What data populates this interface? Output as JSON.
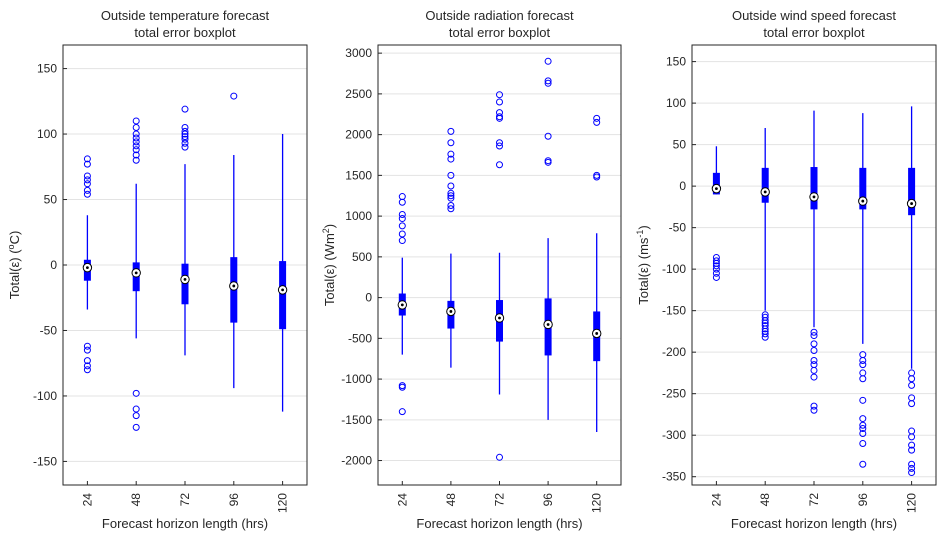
{
  "chart_data": [
    {
      "type": "boxplot",
      "title": [
        "Outside temperature forecast",
        "total error boxplot"
      ],
      "xlabel": "Forecast horizon length (hrs)",
      "ylabel": "Total(ε) (°C)",
      "ylabel_parts": [
        "Total(ε) (",
        "o",
        "C)"
      ],
      "ylim": [
        -168,
        168
      ],
      "yticks": [
        -150,
        -100,
        -50,
        0,
        50,
        100,
        150
      ],
      "grid": true,
      "color": "#0000ff",
      "categories": [
        "24",
        "48",
        "72",
        "96",
        "120"
      ],
      "boxes": [
        {
          "x": "24",
          "whisker_low": -34,
          "q1": -12,
          "median": -2,
          "q3": 4,
          "whisker_high": 38,
          "outliers": [
            81,
            77,
            68,
            65,
            62,
            57,
            54,
            -62,
            -65,
            -73,
            -77,
            -80
          ]
        },
        {
          "x": "48",
          "whisker_low": -56,
          "q1": -20,
          "median": -6,
          "q3": 2,
          "whisker_high": 62,
          "outliers": [
            110,
            105,
            100,
            97,
            94,
            91,
            88,
            84,
            80,
            -98,
            -110,
            -115,
            -124
          ]
        },
        {
          "x": "72",
          "whisker_low": -69,
          "q1": -30,
          "median": -11,
          "q3": 1,
          "whisker_high": 77,
          "outliers": [
            119,
            105,
            102,
            100,
            98,
            96,
            93,
            90
          ]
        },
        {
          "x": "96",
          "whisker_low": -94,
          "q1": -44,
          "median": -16,
          "q3": 6,
          "whisker_high": 84,
          "outliers": [
            129
          ]
        },
        {
          "x": "120",
          "whisker_low": -112,
          "q1": -49,
          "median": -19,
          "q3": 3,
          "whisker_high": 100,
          "outliers": []
        }
      ]
    },
    {
      "type": "boxplot",
      "title": [
        "Outside radiation forecast",
        "total error boxplot"
      ],
      "xlabel": "Forecast horizon length (hrs)",
      "ylabel": "Total(ε) (Wm²)",
      "ylabel_parts": [
        "Total(ε) (Wm",
        "2",
        ")"
      ],
      "ylim": [
        -2300,
        3100
      ],
      "yticks": [
        -2000,
        -1500,
        -1000,
        -500,
        0,
        500,
        1000,
        1500,
        2000,
        2500,
        3000
      ],
      "grid": true,
      "color": "#0000ff",
      "categories": [
        "24",
        "48",
        "72",
        "96",
        "120"
      ],
      "boxes": [
        {
          "x": "24",
          "whisker_low": -700,
          "q1": -220,
          "median": -90,
          "q3": 50,
          "whisker_high": 490,
          "outliers": [
            1240,
            1170,
            1020,
            970,
            880,
            780,
            700,
            -1080,
            -1100,
            -1400
          ]
        },
        {
          "x": "48",
          "whisker_low": -860,
          "q1": -380,
          "median": -170,
          "q3": -40,
          "whisker_high": 540,
          "outliers": [
            2040,
            1900,
            1760,
            1700,
            1500,
            1370,
            1280,
            1250,
            1220,
            1130,
            1090
          ]
        },
        {
          "x": "72",
          "whisker_low": -1190,
          "q1": -540,
          "median": -250,
          "q3": -30,
          "whisker_high": 550,
          "outliers": [
            2490,
            2400,
            2270,
            2220,
            2200,
            1900,
            1860,
            1630,
            -1960
          ]
        },
        {
          "x": "96",
          "whisker_low": -1500,
          "q1": -710,
          "median": -330,
          "q3": -10,
          "whisker_high": 730,
          "outliers": [
            2900,
            2660,
            2630,
            1980,
            1680,
            1660
          ]
        },
        {
          "x": "120",
          "whisker_low": -1650,
          "q1": -780,
          "median": -440,
          "q3": -170,
          "whisker_high": 790,
          "outliers": [
            2200,
            2150,
            1500,
            1480
          ]
        }
      ]
    },
    {
      "type": "boxplot",
      "title": [
        "Outside wind speed forecast",
        "total error boxplot"
      ],
      "xlabel": "Forecast horizon length (hrs)",
      "ylabel": "Total(ε) (ms⁻¹)",
      "ylabel_parts": [
        "Total(ε) (ms",
        "-1",
        ")"
      ],
      "ylim": [
        -360,
        170
      ],
      "yticks": [
        -350,
        -300,
        -250,
        -200,
        -150,
        -100,
        -50,
        0,
        50,
        100,
        150
      ],
      "grid": true,
      "color": "#0000ff",
      "categories": [
        "24",
        "48",
        "72",
        "96",
        "120"
      ],
      "boxes": [
        {
          "x": "24",
          "whisker_low": -10,
          "q1": -10,
          "median": -3,
          "q3": 16,
          "whisker_high": 48,
          "outliers": [
            -86,
            -90,
            -93,
            -96,
            -100,
            -105,
            -110
          ]
        },
        {
          "x": "48",
          "whisker_low": -150,
          "q1": -20,
          "median": -7,
          "q3": 22,
          "whisker_high": 70,
          "outliers": [
            -155,
            -158,
            -162,
            -165,
            -168,
            -172,
            -175,
            -178,
            -182
          ]
        },
        {
          "x": "72",
          "whisker_low": -170,
          "q1": -28,
          "median": -13,
          "q3": 23,
          "whisker_high": 91,
          "outliers": [
            -176,
            -180,
            -190,
            -198,
            -210,
            -215,
            -222,
            -230,
            -265,
            -270
          ]
        },
        {
          "x": "96",
          "whisker_low": -190,
          "q1": -28,
          "median": -18,
          "q3": 22,
          "whisker_high": 88,
          "outliers": [
            -203,
            -210,
            -215,
            -225,
            -232,
            -258,
            -280,
            -288,
            -292,
            -298,
            -310,
            -335
          ]
        },
        {
          "x": "120",
          "whisker_low": -220,
          "q1": -35,
          "median": -21,
          "q3": 22,
          "whisker_high": 96,
          "outliers": [
            -225,
            -232,
            -240,
            -255,
            -262,
            -295,
            -302,
            -312,
            -318,
            -335,
            -340,
            -345
          ]
        }
      ]
    }
  ]
}
